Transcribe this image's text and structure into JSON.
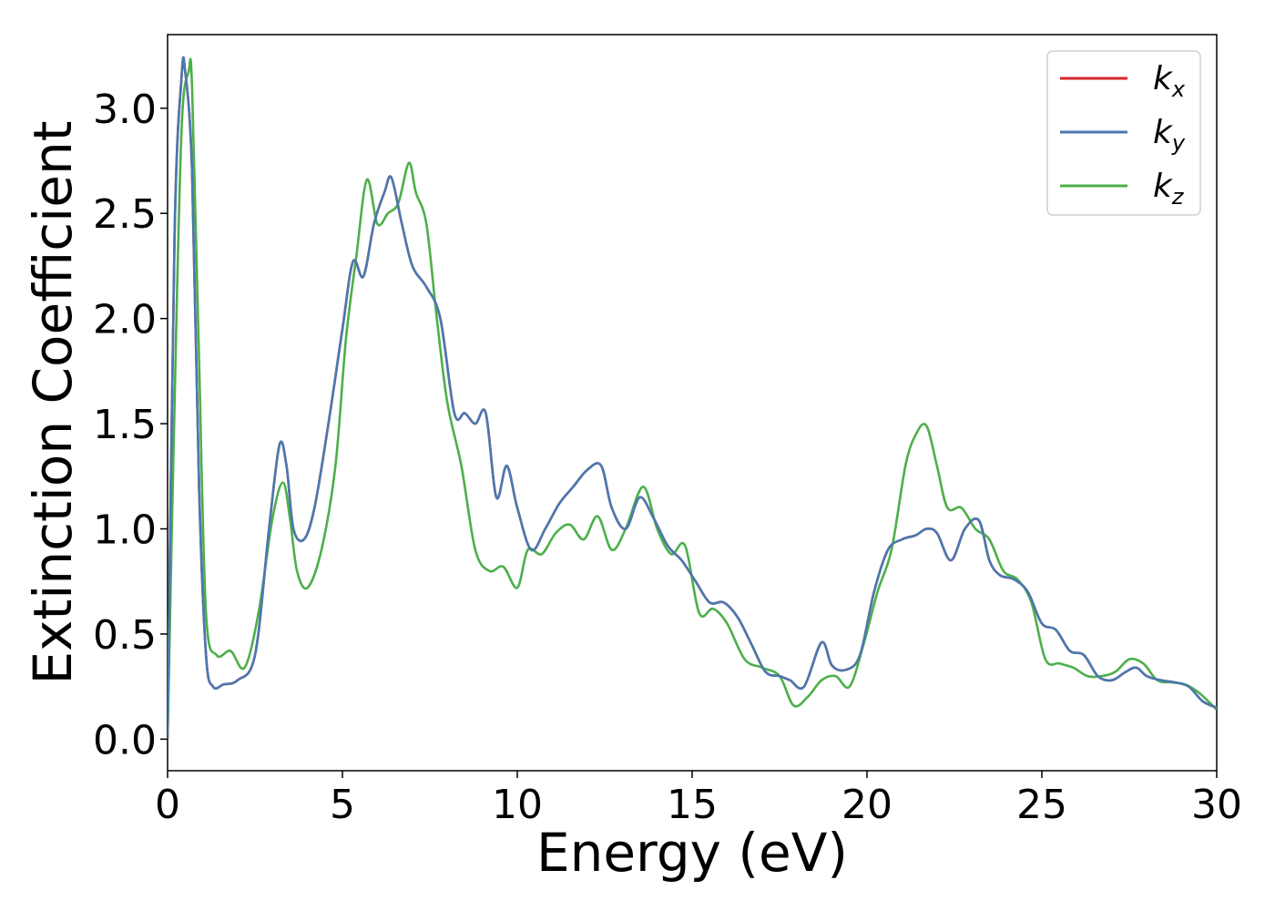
{
  "chart_data": {
    "type": "line",
    "xlabel": "Energy (eV)",
    "ylabel": "Extinction Coefficient",
    "xlim": [
      0,
      30
    ],
    "ylim": [
      -0.15,
      3.35
    ],
    "xticks": [
      "0",
      "5",
      "10",
      "15",
      "20",
      "25",
      "30"
    ],
    "yticks": [
      "0.0",
      "0.5",
      "1.0",
      "1.5",
      "2.0",
      "2.5",
      "3.0"
    ],
    "grid": false,
    "legend_position": "top-right",
    "series": [
      {
        "name": "k_x",
        "label_main": "k",
        "label_sub": "x",
        "color": "#d62728",
        "x": [
          0,
          0.2,
          0.4,
          0.5,
          0.7,
          0.9,
          1.1,
          1.3,
          1.6,
          2.0,
          2.5,
          2.9,
          3.2,
          3.4,
          3.6,
          3.9,
          4.2,
          4.6,
          5.0,
          5.3,
          5.6,
          5.9,
          6.2,
          6.4,
          6.7,
          7.0,
          7.4,
          7.8,
          8.2,
          8.5,
          8.8,
          9.1,
          9.4,
          9.7,
          10.0,
          10.4,
          10.8,
          11.2,
          11.6,
          12.0,
          12.4,
          12.7,
          13.1,
          13.5,
          13.9,
          14.3,
          14.7,
          15.1,
          15.5,
          15.9,
          16.3,
          16.7,
          17.1,
          17.5,
          17.8,
          18.2,
          18.7,
          19.0,
          19.4,
          19.8,
          20.2,
          20.6,
          21.0,
          21.4,
          21.7,
          22.0,
          22.4,
          22.8,
          23.2,
          23.5,
          23.8,
          24.2,
          24.6,
          25.0,
          25.4,
          25.8,
          26.2,
          26.6,
          27.0,
          27.4,
          27.7,
          28.0,
          28.4,
          28.8,
          29.2,
          29.6,
          30.0
        ],
        "y": [
          0,
          2.4,
          3.15,
          3.18,
          2.7,
          1.2,
          0.4,
          0.25,
          0.26,
          0.28,
          0.4,
          1.0,
          1.4,
          1.3,
          1.0,
          0.95,
          1.1,
          1.5,
          1.95,
          2.27,
          2.2,
          2.45,
          2.6,
          2.67,
          2.45,
          2.25,
          2.15,
          2.0,
          1.55,
          1.55,
          1.5,
          1.55,
          1.15,
          1.3,
          1.1,
          0.9,
          1.0,
          1.12,
          1.2,
          1.28,
          1.3,
          1.1,
          1.0,
          1.15,
          1.05,
          0.92,
          0.85,
          0.75,
          0.65,
          0.65,
          0.58,
          0.45,
          0.32,
          0.3,
          0.28,
          0.25,
          0.46,
          0.35,
          0.33,
          0.4,
          0.7,
          0.9,
          0.95,
          0.97,
          1.0,
          0.98,
          0.85,
          1.0,
          1.04,
          0.85,
          0.78,
          0.76,
          0.7,
          0.55,
          0.52,
          0.42,
          0.4,
          0.3,
          0.28,
          0.32,
          0.34,
          0.3,
          0.28,
          0.27,
          0.25,
          0.18,
          0.15
        ]
      },
      {
        "name": "k_y",
        "label_main": "k",
        "label_sub": "y",
        "color": "#4a78b0",
        "x": [
          0,
          0.2,
          0.4,
          0.5,
          0.7,
          0.9,
          1.1,
          1.3,
          1.6,
          2.0,
          2.5,
          2.9,
          3.2,
          3.4,
          3.6,
          3.9,
          4.2,
          4.6,
          5.0,
          5.3,
          5.6,
          5.9,
          6.2,
          6.4,
          6.7,
          7.0,
          7.4,
          7.8,
          8.2,
          8.5,
          8.8,
          9.1,
          9.4,
          9.7,
          10.0,
          10.4,
          10.8,
          11.2,
          11.6,
          12.0,
          12.4,
          12.7,
          13.1,
          13.5,
          13.9,
          14.3,
          14.7,
          15.1,
          15.5,
          15.9,
          16.3,
          16.7,
          17.1,
          17.5,
          17.8,
          18.2,
          18.7,
          19.0,
          19.4,
          19.8,
          20.2,
          20.6,
          21.0,
          21.4,
          21.7,
          22.0,
          22.4,
          22.8,
          23.2,
          23.5,
          23.8,
          24.2,
          24.6,
          25.0,
          25.4,
          25.8,
          26.2,
          26.6,
          27.0,
          27.4,
          27.7,
          28.0,
          28.4,
          28.8,
          29.2,
          29.6,
          30.0
        ],
        "y": [
          0,
          2.4,
          3.15,
          3.18,
          2.7,
          1.2,
          0.4,
          0.25,
          0.26,
          0.28,
          0.4,
          1.0,
          1.4,
          1.3,
          1.0,
          0.95,
          1.1,
          1.5,
          1.95,
          2.27,
          2.2,
          2.45,
          2.6,
          2.67,
          2.45,
          2.25,
          2.15,
          2.0,
          1.55,
          1.55,
          1.5,
          1.55,
          1.15,
          1.3,
          1.1,
          0.9,
          1.0,
          1.12,
          1.2,
          1.28,
          1.3,
          1.1,
          1.0,
          1.15,
          1.05,
          0.92,
          0.85,
          0.75,
          0.65,
          0.65,
          0.58,
          0.45,
          0.32,
          0.3,
          0.28,
          0.25,
          0.46,
          0.35,
          0.33,
          0.4,
          0.7,
          0.9,
          0.95,
          0.97,
          1.0,
          0.98,
          0.85,
          1.0,
          1.04,
          0.85,
          0.78,
          0.76,
          0.7,
          0.55,
          0.52,
          0.42,
          0.4,
          0.3,
          0.28,
          0.32,
          0.34,
          0.3,
          0.28,
          0.27,
          0.25,
          0.18,
          0.15
        ]
      },
      {
        "name": "k_z",
        "label_main": "k",
        "label_sub": "z",
        "color": "#4daf4a",
        "x": [
          0,
          0.2,
          0.4,
          0.6,
          0.7,
          0.9,
          1.1,
          1.4,
          1.8,
          2.2,
          2.6,
          3.0,
          3.3,
          3.5,
          3.7,
          4.0,
          4.4,
          4.8,
          5.1,
          5.4,
          5.7,
          6.0,
          6.3,
          6.6,
          6.9,
          7.1,
          7.4,
          7.7,
          8.0,
          8.4,
          8.8,
          9.2,
          9.6,
          10.0,
          10.3,
          10.7,
          11.1,
          11.5,
          11.9,
          12.3,
          12.7,
          13.1,
          13.6,
          14.0,
          14.4,
          14.8,
          15.2,
          15.6,
          16.0,
          16.5,
          17.0,
          17.5,
          17.9,
          18.3,
          18.7,
          19.1,
          19.5,
          19.9,
          20.3,
          20.7,
          21.1,
          21.4,
          21.7,
          22.0,
          22.3,
          22.7,
          23.1,
          23.5,
          23.9,
          24.3,
          24.7,
          25.1,
          25.5,
          25.9,
          26.3,
          26.7,
          27.1,
          27.5,
          27.9,
          28.3,
          28.7,
          29.1,
          29.5,
          30.0
        ],
        "y": [
          0,
          1.6,
          2.9,
          3.17,
          3.1,
          1.8,
          0.6,
          0.4,
          0.42,
          0.34,
          0.6,
          1.05,
          1.22,
          1.05,
          0.8,
          0.72,
          0.9,
          1.3,
          1.9,
          2.3,
          2.66,
          2.45,
          2.5,
          2.55,
          2.74,
          2.6,
          2.45,
          2.0,
          1.6,
          1.3,
          0.9,
          0.8,
          0.82,
          0.72,
          0.9,
          0.88,
          0.98,
          1.02,
          0.95,
          1.06,
          0.9,
          1.0,
          1.2,
          1.0,
          0.88,
          0.92,
          0.6,
          0.62,
          0.55,
          0.38,
          0.34,
          0.3,
          0.16,
          0.2,
          0.28,
          0.3,
          0.25,
          0.45,
          0.7,
          0.9,
          1.3,
          1.45,
          1.49,
          1.3,
          1.1,
          1.1,
          1.0,
          0.95,
          0.8,
          0.76,
          0.65,
          0.38,
          0.36,
          0.34,
          0.3,
          0.3,
          0.32,
          0.38,
          0.36,
          0.28,
          0.27,
          0.26,
          0.22,
          0.14
        ]
      }
    ]
  }
}
